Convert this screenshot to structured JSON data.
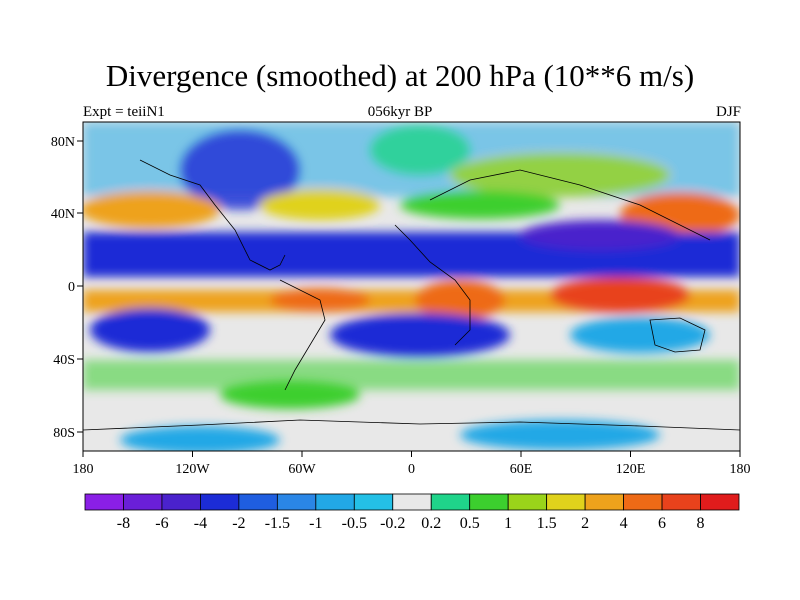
{
  "title": "Divergence (smoothed) at 200 hPa (10**6 m/s)",
  "left_label": "Expt = teiiN1",
  "center_label": "056kyr BP",
  "right_label": "DJF",
  "map": {
    "projection": "cylindrical equidistant",
    "lon_range": [
      -180,
      180
    ],
    "lat_range": [
      -90,
      90
    ],
    "lon_ticks": [
      "180",
      "120W",
      "60W",
      "0",
      "60E",
      "120E",
      "180"
    ],
    "lat_ticks": [
      "80N",
      "40N",
      "0",
      "40S",
      "80S"
    ],
    "coastlines": true
  },
  "colorbar": {
    "labels": [
      "-8",
      "-6",
      "-4",
      "-2",
      "-1.5",
      "-1",
      "-0.5",
      "-0.2",
      "0.2",
      "0.5",
      "1",
      "1.5",
      "2",
      "4",
      "6",
      "8"
    ],
    "colors": [
      "#8a1fe6",
      "#6a1fd8",
      "#4a22cc",
      "#1c2cd6",
      "#1f5ee0",
      "#2a86e6",
      "#22a8e6",
      "#24c0e6",
      "#e8e8e8",
      "#1fd48a",
      "#3ccf2e",
      "#9ad41a",
      "#e0d21c",
      "#eea21c",
      "#ee6a16",
      "#e8421c",
      "#e01c1c"
    ]
  }
}
